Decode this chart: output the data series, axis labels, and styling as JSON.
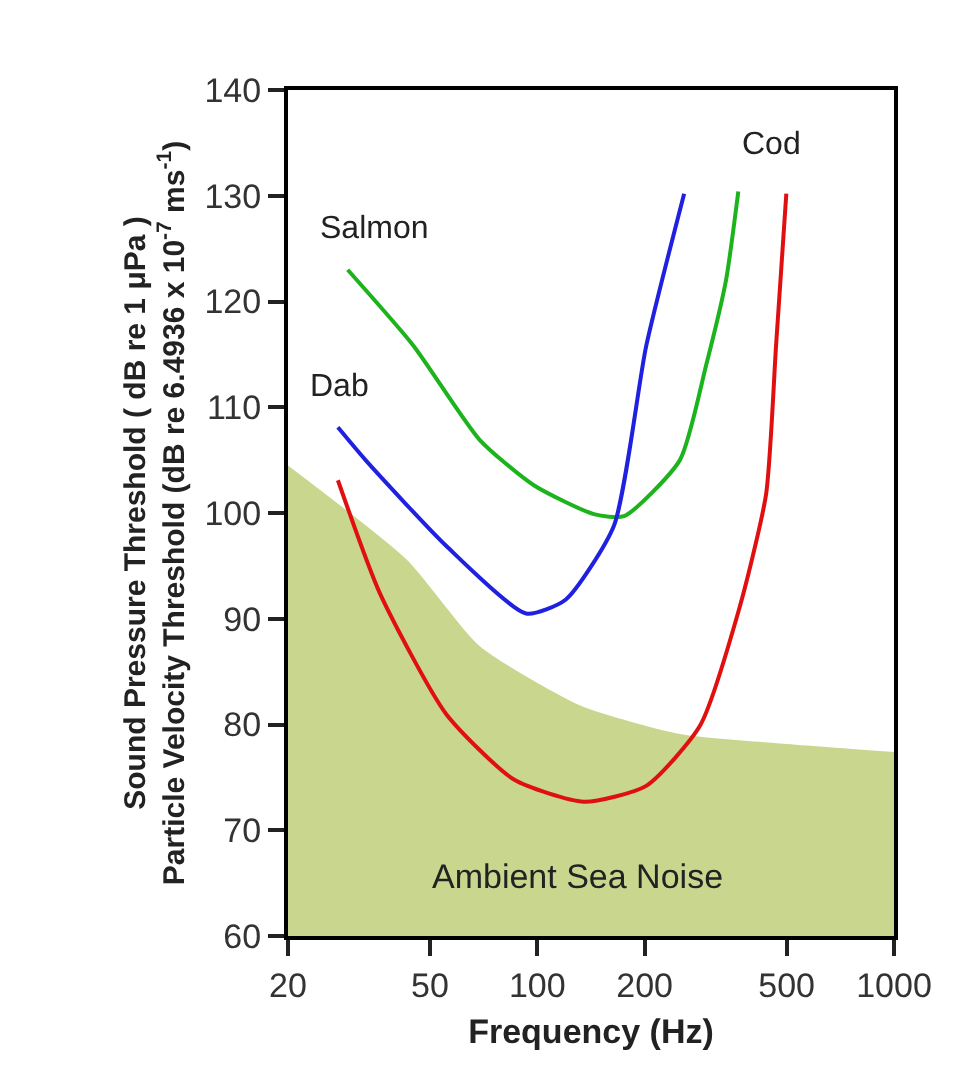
{
  "chart_data": {
    "type": "line",
    "xlabel": "Frequency (Hz)",
    "ylabel": "Sound Pressure Threshold ( dB re 1 μPa )\nParticle Velocity Threshold (dB re 6.4936 x 10$^{-7}$ ms$^{-1}$)",
    "log": "x",
    "xlim": [
      20,
      1000
    ],
    "xticks": [
      20,
      50,
      100,
      200,
      500,
      1000
    ],
    "ylim": [
      60,
      140
    ],
    "yticks": [
      60,
      70,
      80,
      90,
      100,
      110,
      120,
      130,
      140
    ],
    "grid": false,
    "legend": false,
    "annotations": [
      "Ambient Sea Noise"
    ],
    "series": [
      {
        "type": "area",
        "color": "#c9d68e",
        "x": [
          20,
          43,
          69,
          132,
          251,
          480,
          1000
        ],
        "values": [
          104.5,
          95.6,
          87.4,
          81.8,
          79.1,
          78.2,
          77.4
        ]
      },
      {
        "name": "Salmon",
        "color": "#1db31d",
        "x": [
          29.4,
          45,
          69,
          98,
          144,
          175,
          251,
          297,
          338,
          366
        ],
        "values": [
          123,
          115.8,
          106.9,
          102.6,
          99.9,
          99.7,
          105,
          113.9,
          122,
          130.4
        ]
      },
      {
        "name": "Dab",
        "color": "#2020e0",
        "x": [
          27.6,
          33,
          55.5,
          93,
          120,
          164,
          202,
          258
        ],
        "values": [
          108.1,
          105,
          96.9,
          90.5,
          91.8,
          98.8,
          115.8,
          130.2
        ]
      },
      {
        "name": "Cod",
        "color": "#e01010",
        "x": [
          27.6,
          36.2,
          55.5,
          86,
          135,
          202,
          286,
          370,
          438,
          467,
          499
        ],
        "values": [
          103.1,
          92.4,
          81,
          74.8,
          72.7,
          74.2,
          79.9,
          91.2,
          101.8,
          115.8,
          130.2
        ]
      }
    ]
  }
}
